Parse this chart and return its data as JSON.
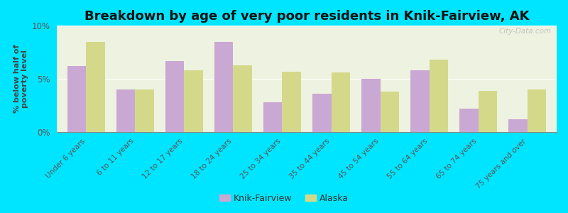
{
  "title": "Breakdown by age of very poor residents in Knik-Fairview, AK",
  "categories": [
    "Under 6 years",
    "6 to 11 years",
    "12 to 17 years",
    "18 to 24 years",
    "25 to 34 years",
    "35 to 44 years",
    "45 to 54 years",
    "55 to 64 years",
    "65 to 74 years",
    "75 years and over"
  ],
  "knik_values": [
    6.2,
    4.0,
    6.7,
    8.5,
    2.8,
    3.6,
    5.0,
    5.8,
    2.2,
    1.2
  ],
  "alaska_values": [
    8.5,
    4.0,
    5.8,
    6.3,
    5.7,
    5.6,
    3.8,
    6.8,
    3.9,
    4.0
  ],
  "knik_color": "#c9a8d4",
  "alaska_color": "#d4d98a",
  "background_outer": "#00e5ff",
  "background_inner": "#eef2e0",
  "ylabel": "% below half of\npoverty level",
  "ylim": [
    0,
    10
  ],
  "yticks": [
    0,
    5,
    10
  ],
  "ytick_labels": [
    "0%",
    "5%",
    "10%"
  ],
  "legend_knik": "Knik-Fairview",
  "legend_alaska": "Alaska",
  "title_fontsize": 13,
  "bar_width": 0.38,
  "watermark": "City-Data.com"
}
